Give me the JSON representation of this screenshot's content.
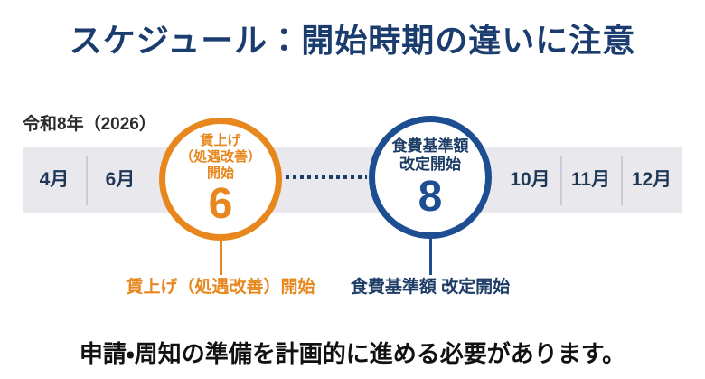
{
  "title": "スケジュール：開始時期の違いに注意",
  "timeline": {
    "year_label": "令和8年（2026）",
    "months": [
      "4月",
      "6月",
      "10月",
      "11月",
      "12月"
    ],
    "events": [
      {
        "id": "wage-raise",
        "circle_lines": [
          "賃上げ",
          "（処遇改善）",
          "開始"
        ],
        "month_number": "6",
        "label": "賃上げ（処遇改善）開始",
        "color": "#e8871e"
      },
      {
        "id": "meal-cost-revision",
        "circle_lines": [
          "食費基準額",
          "改定開始"
        ],
        "month_number": "8",
        "label": "食費基準額 改定開始",
        "color": "#1d4e92"
      }
    ]
  },
  "footer": "申請・周知の準備を計画的に進める必要があります。",
  "colors": {
    "title_navy": "#1b3c6e",
    "orange_accent": "#e8871e",
    "blue_accent": "#1d4e92",
    "dark_navy_text": "#1e3d66",
    "timeline_bar": "#e8e8ed",
    "footer_text": "#111111"
  }
}
